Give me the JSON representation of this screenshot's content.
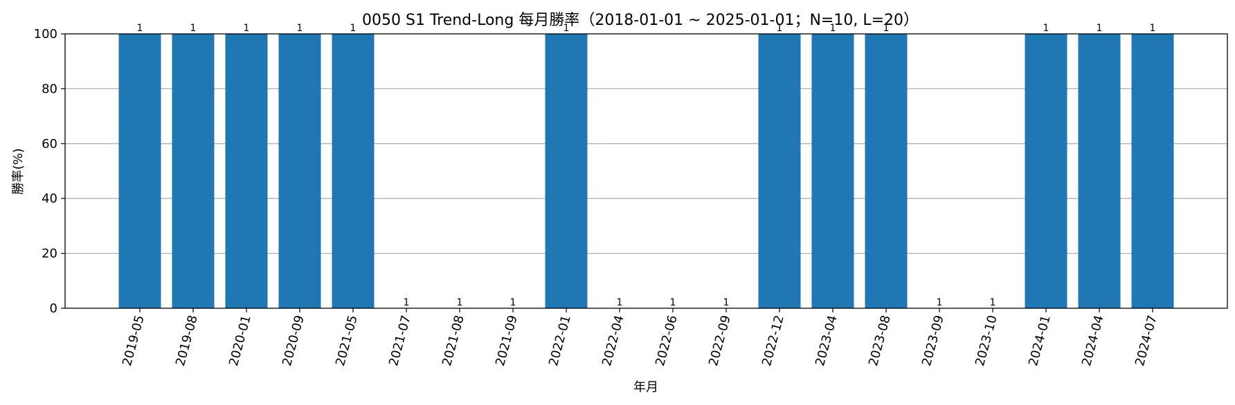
{
  "chart_data": {
    "type": "bar",
    "title": "0050 S1 Trend-Long 每月勝率（2018-01-01 ~ 2025-01-01；N=10, L=20）",
    "xlabel": "年月",
    "ylabel": "勝率(%)",
    "ylim": [
      0,
      100
    ],
    "yticks": [
      0,
      20,
      40,
      60,
      80,
      100
    ],
    "grid": "y",
    "bar_color": "#1f77b4",
    "categories": [
      "2019-05",
      "2019-08",
      "2020-01",
      "2020-09",
      "2021-05",
      "2021-07",
      "2021-08",
      "2021-09",
      "2022-01",
      "2022-04",
      "2022-06",
      "2022-09",
      "2022-12",
      "2023-04",
      "2023-08",
      "2023-09",
      "2023-10",
      "2024-01",
      "2024-04",
      "2024-07"
    ],
    "values": [
      100,
      100,
      100,
      100,
      100,
      0,
      0,
      0,
      100,
      0,
      0,
      0,
      100,
      100,
      100,
      0,
      0,
      100,
      100,
      100
    ],
    "bar_labels": [
      "1",
      "1",
      "1",
      "1",
      "1",
      "1",
      "1",
      "1",
      "1",
      "1",
      "1",
      "1",
      "1",
      "1",
      "1",
      "1",
      "1",
      "1",
      "1",
      "1"
    ]
  }
}
